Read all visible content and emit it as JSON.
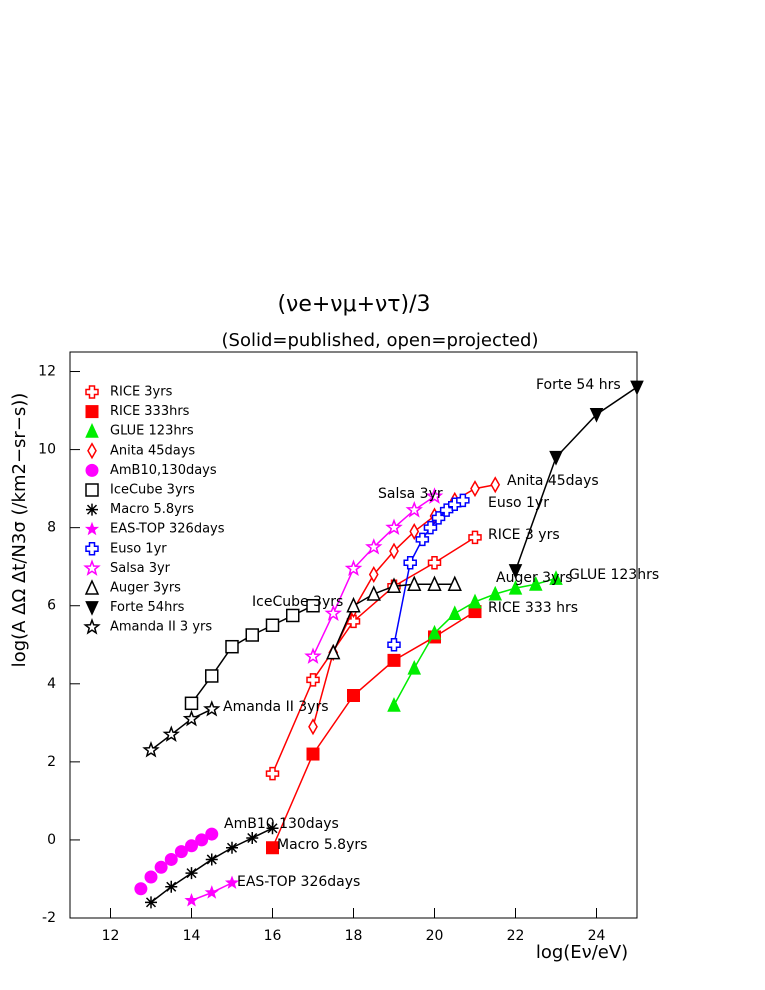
{
  "chart_data": {
    "type": "line",
    "title": "(νe+νμ+ντ)/3",
    "subtitle": "(Solid=published, open=projected)",
    "x_label": "log(Eν/eV)",
    "y_label": "log(A ΔΩ Δt/N3σ (/km2−sr−s))",
    "xlim": [
      11,
      25
    ],
    "ylim": [
      -2,
      12.5
    ],
    "xticks": [
      12,
      14,
      16,
      18,
      20,
      22,
      24
    ],
    "yticks": [
      -2,
      0,
      2,
      4,
      6,
      8,
      10,
      12
    ],
    "grid": false,
    "legend": "upper left",
    "series": [
      {
        "name": "RICE 3yrs",
        "color": "#ff0000",
        "marker": "cross-open",
        "x": [
          16,
          17,
          18,
          19,
          20,
          21
        ],
        "values": [
          1.7,
          4.1,
          5.6,
          6.5,
          7.1,
          7.75
        ]
      },
      {
        "name": "RICE 333hrs",
        "color": "#ff0000",
        "marker": "square",
        "x": [
          16,
          17,
          18,
          19,
          20,
          21
        ],
        "values": [
          -0.2,
          2.2,
          3.7,
          4.6,
          5.2,
          5.85
        ]
      },
      {
        "name": "GLUE 123hrs",
        "color": "#00ee00",
        "marker": "triangle",
        "x": [
          19,
          19.5,
          20,
          20.5,
          21,
          21.5,
          22,
          22.5,
          23
        ],
        "values": [
          3.45,
          4.4,
          5.3,
          5.8,
          6.1,
          6.3,
          6.45,
          6.55,
          6.7
        ]
      },
      {
        "name": "Anita 45days",
        "color": "#ff0000",
        "marker": "diamond-open",
        "x": [
          17,
          17.5,
          18,
          18.5,
          19,
          19.5,
          20,
          20.5,
          21,
          21.5
        ],
        "values": [
          2.9,
          4.8,
          5.9,
          6.8,
          7.4,
          7.9,
          8.3,
          8.7,
          9.0,
          9.1
        ]
      },
      {
        "name": "AmB10,130days",
        "color": "#ff00ff",
        "marker": "circle",
        "line": false,
        "x": [
          12.75,
          13,
          13.25,
          13.5,
          13.75,
          14,
          14.25,
          14.5
        ],
        "values": [
          -1.25,
          -0.95,
          -0.7,
          -0.5,
          -0.3,
          -0.15,
          0,
          0.15
        ]
      },
      {
        "name": "IceCube 3yrs",
        "color": "#000000",
        "marker": "square-open",
        "x": [
          14,
          14.5,
          15,
          15.5,
          16,
          16.5,
          17
        ],
        "values": [
          3.5,
          4.2,
          4.95,
          5.25,
          5.5,
          5.75,
          6.0
        ]
      },
      {
        "name": "Macro 5.8yrs",
        "color": "#000000",
        "marker": "asterisk",
        "x": [
          13,
          13.5,
          14,
          14.5,
          15,
          15.5,
          16
        ],
        "values": [
          -1.6,
          -1.2,
          -0.85,
          -0.5,
          -0.2,
          0.05,
          0.3
        ]
      },
      {
        "name": "EAS-TOP 326days",
        "color": "#ff00ff",
        "marker": "star",
        "x": [
          14,
          14.5,
          15
        ],
        "values": [
          -1.55,
          -1.35,
          -1.1
        ]
      },
      {
        "name": "Euso 1yr",
        "color": "#0000ff",
        "marker": "cross-open",
        "x": [
          19,
          19.4,
          19.7,
          19.9,
          20.1,
          20.3,
          20.5,
          20.7
        ],
        "values": [
          5.0,
          7.1,
          7.7,
          8.0,
          8.25,
          8.45,
          8.6,
          8.7
        ]
      },
      {
        "name": "Salsa 3yr",
        "color": "#ff00ff",
        "marker": "star-open",
        "x": [
          17,
          17.5,
          18,
          18.5,
          19,
          19.5,
          20
        ],
        "values": [
          4.7,
          5.8,
          6.95,
          7.5,
          8.0,
          8.45,
          8.8
        ]
      },
      {
        "name": "Auger 3yrs",
        "color": "#000000",
        "marker": "triangle-open",
        "x": [
          17.5,
          18,
          18.5,
          19,
          19.5,
          20,
          20.5
        ],
        "values": [
          4.8,
          6.0,
          6.3,
          6.5,
          6.55,
          6.55,
          6.55
        ]
      },
      {
        "name": "Forte 54hrs",
        "color": "#000000",
        "marker": "triangle-down",
        "x": [
          22,
          23,
          24,
          25
        ],
        "values": [
          6.9,
          9.8,
          10.9,
          11.6
        ]
      },
      {
        "name": "Amanda II 3 yrs",
        "color": "#000000",
        "marker": "star-open",
        "x": [
          13,
          13.5,
          14,
          14.5
        ],
        "values": [
          2.3,
          2.7,
          3.1,
          3.35
        ]
      }
    ],
    "annotations": [
      "Forte 54 hrs",
      "Anita 45days",
      "Salsa 3yr",
      "Euso 1yr",
      "RICE 3 yrs",
      "Auger 3yrs",
      "GLUE 123hrs",
      "IceCube 3yrs",
      "RICE 333 hrs",
      "Amanda II 3yrs",
      "AmB10 130days",
      "Macro 5.8yrs",
      "EAS-TOP 326days"
    ]
  }
}
